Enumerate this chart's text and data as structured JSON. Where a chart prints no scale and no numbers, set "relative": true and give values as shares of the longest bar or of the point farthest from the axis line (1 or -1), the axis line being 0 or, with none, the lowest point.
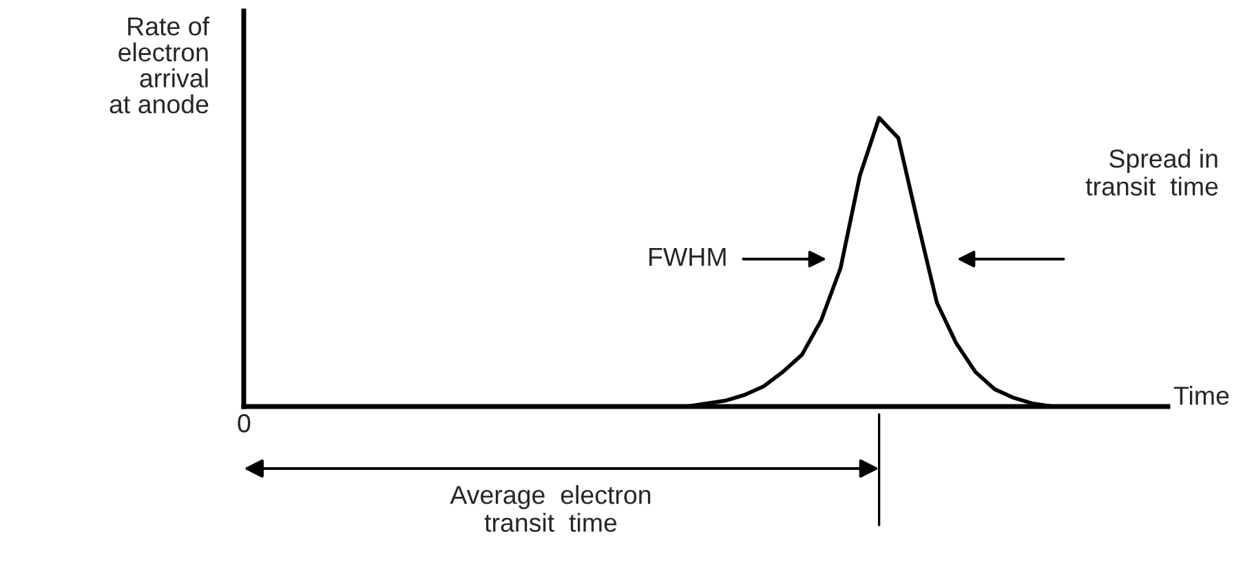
{
  "chart_data": {
    "type": "line",
    "relative": true,
    "ylabel": "Rate of\nelectron\narrival\nat anode",
    "xlabel": "Time",
    "categories": [
      null,
      null,
      null,
      null,
      null,
      null,
      null,
      null,
      null,
      null,
      null,
      null,
      null,
      null,
      null,
      null,
      null,
      null,
      null,
      null,
      null,
      null,
      null,
      null,
      null,
      null,
      null,
      null,
      null,
      null,
      null,
      null,
      null,
      null,
      null,
      null,
      null,
      null,
      null,
      null,
      null,
      null,
      null,
      null,
      null,
      null,
      null,
      null,
      null
    ],
    "series": [
      {
        "color": "#000000",
        "values": [
          0,
          0,
          0,
          0,
          0,
          0,
          0,
          0,
          0,
          0,
          0,
          0,
          0,
          0,
          0,
          0,
          0,
          0,
          0,
          0,
          0,
          0,
          0,
          0,
          0.01,
          0.02,
          0.04,
          0.07,
          0.12,
          0.18,
          0.3,
          0.48,
          0.8,
          1,
          0.93,
          0.64,
          0.36,
          0.22,
          0.12,
          0.06,
          0.03,
          0.01,
          0,
          0,
          0,
          0,
          0,
          0,
          0
        ]
      }
    ],
    "annotations": [
      "FWHM",
      "Spread in\ntransit  time",
      "Average  electron\ntransit  time",
      "0"
    ],
    "marker": "none",
    "line_style": "solid"
  }
}
